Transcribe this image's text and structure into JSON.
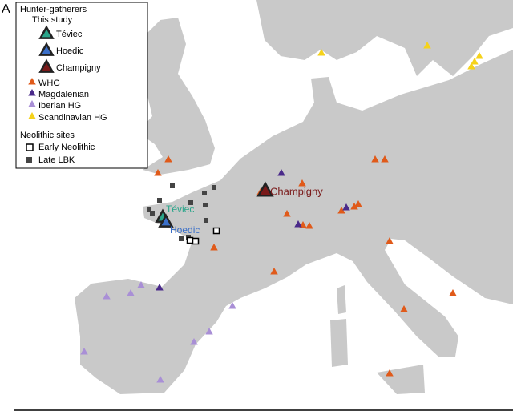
{
  "panel_label": "A",
  "legend": {
    "title": "Hunter-gatherers",
    "subtitle": "This study",
    "study_sites": [
      "Téviec",
      "Hoedic",
      "Champigny"
    ],
    "groups": [
      "WHG",
      "Magdalenian",
      "Iberian HG",
      "Scandinavian HG"
    ],
    "neolithic_title": "Neolithic sites",
    "neolithic_items": [
      "Early Neolithic",
      "Late LBK"
    ]
  },
  "map_labels": [
    "Téviec",
    "Hoedic",
    "Champigny"
  ]
}
